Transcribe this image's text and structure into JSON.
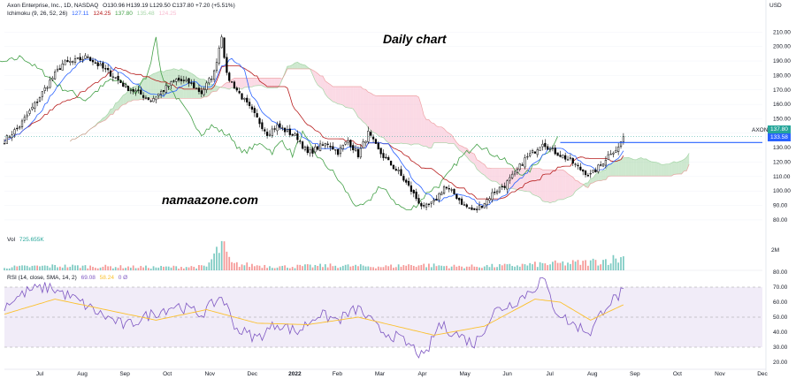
{
  "header": {
    "title": "Axon Enterprise, Inc., 1D, NASDAQ",
    "ohlc": "O130.96 H139.19 L129.50 C137.80 +7.20 (+5.51%)",
    "ichimoku_label": "Ichimoku (9, 26, 52, 26)",
    "ichimoku_values": [
      "127.11",
      "124.25",
      "137.80",
      "135.48",
      "124.25"
    ]
  },
  "overlays": {
    "chart_title": "Daily chart",
    "watermark": "namaazone.com"
  },
  "vol_panel": {
    "label": "Vol",
    "value": "725.655K",
    "tick": "2M"
  },
  "rsi_panel": {
    "label": "RSI (14, close, SMA, 14, 2)",
    "values": [
      "69.08",
      "58.24"
    ],
    "extra": "0 Ø"
  },
  "price_tags": {
    "axon_label": "AXON",
    "last_price": "137.80",
    "resistance_price": "133.58"
  },
  "colors": {
    "bull": "#26a69a",
    "bear": "#ef5350",
    "conversion": "#2962ff",
    "base": "#b71c1c",
    "lagging": "#43a047",
    "cloud_bull": "#a5d6a7",
    "cloud_bear": "#f8bbd0",
    "rsi_line": "#7e57c2",
    "rsi_sma": "#fbc02d",
    "resistance": "#2962ff",
    "candle": "#000000"
  },
  "chart_data": {
    "type": "line",
    "price_axis": {
      "label": "USD",
      "ticks": [
        80,
        90,
        100,
        110,
        120,
        130,
        140,
        150,
        160,
        170,
        180,
        190,
        200,
        210
      ],
      "ylim": [
        72,
        220
      ]
    },
    "time_axis_labels": [
      "Jul",
      "Aug",
      "Sep",
      "Oct",
      "Nov",
      "Dec",
      "2022",
      "Feb",
      "Mar",
      "Apr",
      "May",
      "Jun",
      "Jul",
      "Aug",
      "Sep",
      "Oct",
      "Nov",
      "Dec"
    ],
    "close_path": [
      [
        0,
        135
      ],
      [
        6,
        145
      ],
      [
        12,
        160
      ],
      [
        18,
        176
      ],
      [
        23,
        188
      ],
      [
        28,
        190
      ],
      [
        33,
        193
      ],
      [
        38,
        186
      ],
      [
        43,
        180
      ],
      [
        48,
        172
      ],
      [
        53,
        168
      ],
      [
        58,
        163
      ],
      [
        63,
        170
      ],
      [
        68,
        177
      ],
      [
        73,
        175
      ],
      [
        78,
        168
      ],
      [
        83,
        182
      ],
      [
        86,
        208
      ],
      [
        88,
        180
      ],
      [
        92,
        170
      ],
      [
        96,
        160
      ],
      [
        100,
        150
      ],
      [
        104,
        140
      ],
      [
        108,
        145
      ],
      [
        112,
        141
      ],
      [
        116,
        137
      ],
      [
        120,
        126
      ],
      [
        124,
        130
      ],
      [
        128,
        133
      ],
      [
        132,
        127
      ],
      [
        136,
        135
      ],
      [
        140,
        125
      ],
      [
        144,
        140
      ],
      [
        148,
        128
      ],
      [
        152,
        120
      ],
      [
        156,
        113
      ],
      [
        160,
        103
      ],
      [
        163,
        95
      ],
      [
        166,
        88
      ],
      [
        170,
        92
      ],
      [
        174,
        103
      ],
      [
        178,
        98
      ],
      [
        182,
        90
      ],
      [
        186,
        86
      ],
      [
        190,
        92
      ],
      [
        194,
        100
      ],
      [
        198,
        104
      ],
      [
        202,
        112
      ],
      [
        206,
        122
      ],
      [
        210,
        128
      ],
      [
        213,
        134
      ],
      [
        216,
        129
      ],
      [
        220,
        125
      ],
      [
        224,
        121
      ],
      [
        228,
        115
      ],
      [
        232,
        111
      ],
      [
        236,
        118
      ],
      [
        240,
        127
      ],
      [
        243,
        130
      ],
      [
        245,
        137.8
      ]
    ],
    "resistance_level": 133.58,
    "rsi": {
      "ylim": [
        20,
        80
      ],
      "ticks": [
        20,
        30,
        40,
        50,
        60,
        70,
        80
      ],
      "bands": [
        30,
        50,
        70
      ],
      "rsi_path": [
        [
          0,
          58
        ],
        [
          10,
          68
        ],
        [
          18,
          70
        ],
        [
          28,
          62
        ],
        [
          38,
          52
        ],
        [
          48,
          44
        ],
        [
          58,
          52
        ],
        [
          68,
          58
        ],
        [
          78,
          52
        ],
        [
          86,
          64
        ],
        [
          92,
          42
        ],
        [
          100,
          36
        ],
        [
          108,
          46
        ],
        [
          116,
          40
        ],
        [
          124,
          52
        ],
        [
          132,
          48
        ],
        [
          140,
          56
        ],
        [
          148,
          42
        ],
        [
          156,
          36
        ],
        [
          163,
          28
        ],
        [
          166,
          22
        ],
        [
          172,
          45
        ],
        [
          180,
          38
        ],
        [
          186,
          32
        ],
        [
          194,
          54
        ],
        [
          202,
          60
        ],
        [
          210,
          70
        ],
        [
          213,
          76
        ],
        [
          218,
          55
        ],
        [
          224,
          46
        ],
        [
          232,
          40
        ],
        [
          238,
          58
        ],
        [
          243,
          64
        ],
        [
          245,
          69.08
        ]
      ],
      "sma_path": [
        [
          0,
          52
        ],
        [
          20,
          62
        ],
        [
          40,
          55
        ],
        [
          60,
          48
        ],
        [
          80,
          55
        ],
        [
          100,
          46
        ],
        [
          120,
          45
        ],
        [
          140,
          50
        ],
        [
          160,
          42
        ],
        [
          170,
          38
        ],
        [
          190,
          44
        ],
        [
          210,
          62
        ],
        [
          220,
          60
        ],
        [
          232,
          48
        ],
        [
          245,
          58.24
        ]
      ]
    },
    "volume_profile": [
      [
        0,
        0.1
      ],
      [
        20,
        0.14
      ],
      [
        40,
        0.12
      ],
      [
        60,
        0.1
      ],
      [
        80,
        0.12
      ],
      [
        86,
        0.8
      ],
      [
        90,
        0.2
      ],
      [
        110,
        0.12
      ],
      [
        130,
        0.15
      ],
      [
        150,
        0.12
      ],
      [
        163,
        0.18
      ],
      [
        180,
        0.12
      ],
      [
        200,
        0.15
      ],
      [
        213,
        0.2
      ],
      [
        230,
        0.25
      ],
      [
        245,
        0.4
      ]
    ]
  }
}
